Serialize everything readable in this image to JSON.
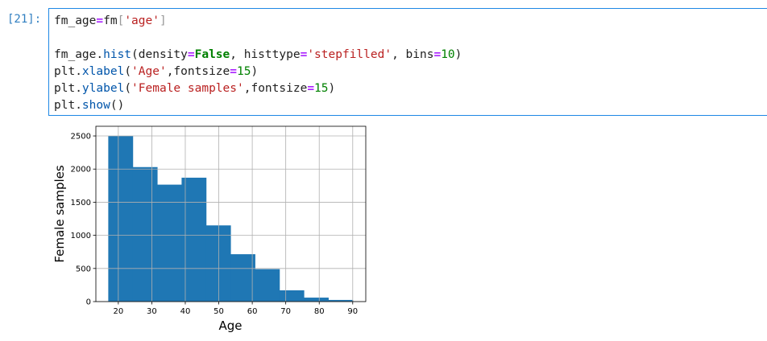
{
  "cell": {
    "prompt": "[21]:",
    "lines": [
      "fm_age=fm['age']",
      "",
      "fm_age.hist(density=False, histtype='stepfilled', bins=10)",
      "plt.xlabel('Age',fontsize=15)",
      "plt.ylabel('Female samples',fontsize=15)",
      "plt.show()"
    ]
  },
  "chart_data": {
    "type": "bar",
    "histtype": "stepfilled",
    "bins": 10,
    "bin_edges": [
      17,
      24.3,
      31.6,
      38.9,
      46.2,
      53.5,
      60.8,
      68.1,
      75.4,
      82.7,
      90
    ],
    "values": [
      2500,
      2030,
      1765,
      1870,
      1150,
      715,
      490,
      170,
      60,
      25
    ],
    "xlabel": "Age",
    "ylabel": "Female samples",
    "xlim": [
      13.3,
      93.9
    ],
    "ylim": [
      0,
      2646
    ],
    "xticks": [
      "20",
      "30",
      "40",
      "50",
      "60",
      "70",
      "80",
      "90"
    ],
    "yticks": [
      "0",
      "500",
      "1000",
      "1500",
      "2000",
      "2500"
    ],
    "grid": true,
    "color": "#1f77b4"
  }
}
